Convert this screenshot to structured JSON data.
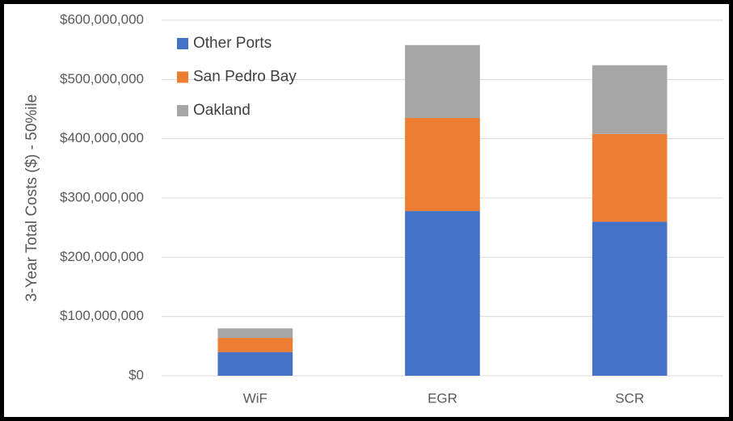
{
  "chart_data": {
    "type": "stacked_bar",
    "y_label": "3-Year Total Costs ($) - 50%ile",
    "categories": [
      "WiF",
      "EGR",
      "SCR"
    ],
    "series": [
      {
        "name": "Other Ports",
        "color": "#4472c4",
        "values": [
          40000000,
          278000000,
          260000000
        ]
      },
      {
        "name": "San Pedro Bay",
        "color": "#ed7d31",
        "values": [
          24000000,
          157000000,
          148000000
        ]
      },
      {
        "name": "Oakland",
        "color": "#a5a5a5",
        "values": [
          16000000,
          123000000,
          116000000
        ]
      }
    ],
    "ylim": [
      0,
      600000000
    ],
    "yticks": [
      {
        "value": 0,
        "label": "$0"
      },
      {
        "value": 100000000,
        "label": "$100,000,000"
      },
      {
        "value": 200000000,
        "label": "$200,000,000"
      },
      {
        "value": 300000000,
        "label": "$300,000,000"
      },
      {
        "value": 400000000,
        "label": "$400,000,000"
      },
      {
        "value": 500000000,
        "label": "$500,000,000"
      },
      {
        "value": 600000000,
        "label": "$600,000,000"
      }
    ],
    "grid": true,
    "legend": "upper-left"
  }
}
